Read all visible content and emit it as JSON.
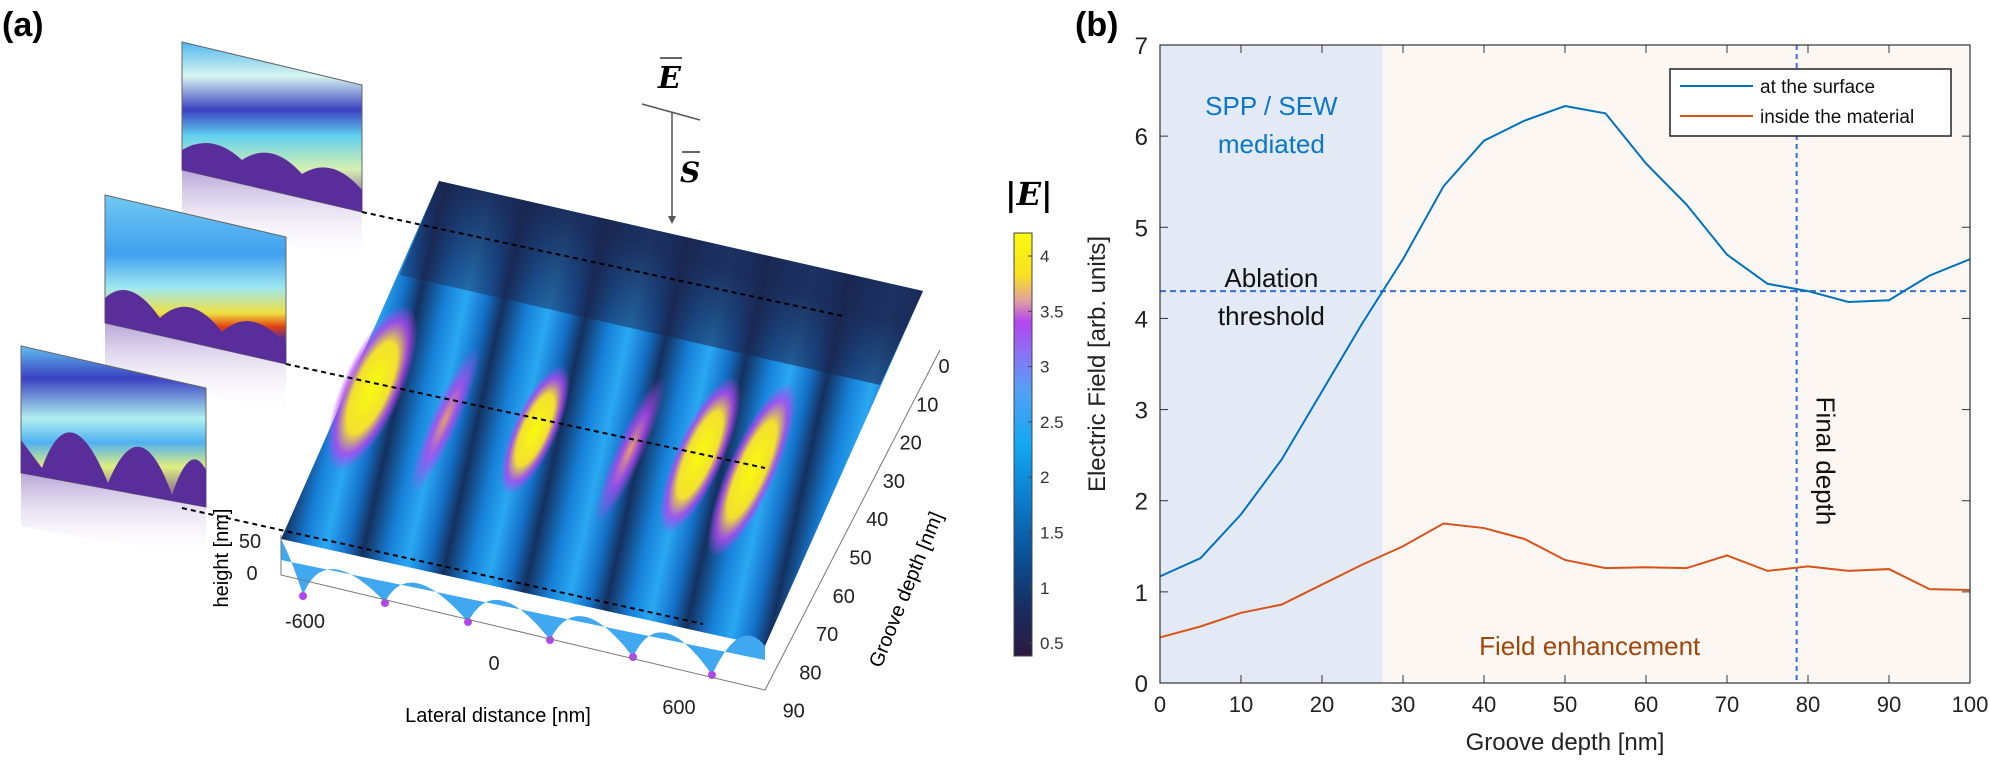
{
  "panel_a": {
    "label": "(a)",
    "e_vector": "E",
    "s_vector": "S",
    "colorbar_title": "|E|",
    "colorbar_ticks": [
      "4",
      "3.5",
      "3",
      "2.5",
      "2",
      "1.5",
      "1",
      "0.5"
    ],
    "colorbar_range": [
      0.35,
      4.2
    ],
    "x_label": "Lateral distance [nm]",
    "x_ticks": [
      "-600",
      "0",
      "600"
    ],
    "z_label": "height [nm]",
    "z_ticks": [
      "50",
      "0"
    ],
    "y_label": "Groove depth [nm]",
    "y_ticks": [
      "0",
      "10",
      "20",
      "30",
      "40",
      "50",
      "60",
      "70",
      "80",
      "90"
    ],
    "colors": {
      "low": "#2B1B40",
      "mid": "#12A8F0",
      "high": "#F9FB0E",
      "purple": "#B445F0"
    }
  },
  "chart_data": {
    "type": "line",
    "panel_label": "(b)",
    "xlabel": "Groove depth [nm]",
    "ylabel": "Electric Field [arb. units]",
    "xlim": [
      0,
      100
    ],
    "ylim": [
      0,
      7
    ],
    "xticks": [
      0,
      10,
      20,
      30,
      40,
      50,
      60,
      70,
      80,
      90,
      100
    ],
    "yticks": [
      0,
      1,
      2,
      3,
      4,
      5,
      6,
      7
    ],
    "grid": false,
    "legend_position": "top-right",
    "x": [
      0,
      5,
      10,
      15,
      20,
      25,
      30,
      35,
      40,
      45,
      50,
      55,
      60,
      65,
      70,
      75,
      80,
      85,
      90,
      95,
      100
    ],
    "series": [
      {
        "name": "at the surface",
        "color": "#0072BD",
        "values": [
          1.17,
          1.37,
          1.85,
          2.45,
          3.2,
          3.95,
          4.65,
          5.45,
          5.95,
          6.17,
          6.33,
          6.25,
          5.7,
          5.25,
          4.7,
          4.38,
          4.3,
          4.18,
          4.2,
          4.47,
          4.65
        ]
      },
      {
        "name": "inside the material",
        "color": "#D95319",
        "values": [
          0.5,
          0.62,
          0.77,
          0.86,
          1.08,
          1.3,
          1.5,
          1.75,
          1.7,
          1.58,
          1.35,
          1.26,
          1.27,
          1.26,
          1.4,
          1.23,
          1.28,
          1.23,
          1.25,
          1.03,
          1.02
        ]
      }
    ],
    "regions": [
      {
        "x": [
          0,
          27.5
        ],
        "color": "#E4EAF5",
        "label": "SPP / SEW\nmediated",
        "label_color": "#0A78C8"
      },
      {
        "x": [
          27.5,
          100
        ],
        "color": "#FCF7F3",
        "label": "Field enhancement",
        "label_color": "#A0460A"
      }
    ],
    "threshold": {
      "y": 4.3,
      "label": "Ablation\nthreshold",
      "color": "#3B6FD0"
    },
    "final_depth": {
      "x": 78.6,
      "label": "Final depth",
      "color": "#3B6FD0"
    }
  }
}
